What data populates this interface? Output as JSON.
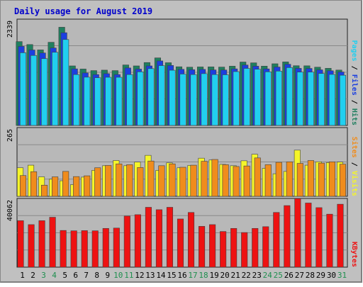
{
  "chart_data": {
    "type": "bar",
    "title": "Daily usage for August 2019",
    "categories": [
      "1",
      "2",
      "3",
      "4",
      "5",
      "6",
      "7",
      "8",
      "9",
      "10",
      "11",
      "12",
      "13",
      "14",
      "15",
      "16",
      "17",
      "18",
      "19",
      "20",
      "21",
      "22",
      "23",
      "24",
      "25",
      "26",
      "27",
      "28",
      "29",
      "30",
      "31"
    ],
    "weekend_days": [
      "3",
      "4",
      "10",
      "11",
      "17",
      "18",
      "24",
      "25",
      "31"
    ],
    "panels": [
      {
        "name": "hits-files-pages",
        "ymax_label": "2339",
        "ylim": [
          0,
          2339
        ],
        "right_labels": [
          "Pages",
          "Files",
          "Hits"
        ],
        "series": [
          {
            "name": "Hits",
            "color": "#1f7f5f",
            "values": [
              1845,
              1780,
              1662,
              1830,
              2161,
              1310,
              1241,
              1207,
              1217,
              1207,
              1331,
              1310,
              1384,
              1486,
              1380,
              1291,
              1282,
              1287,
              1288,
              1284,
              1304,
              1395,
              1377,
              1305,
              1357,
              1398,
              1314,
              1312,
              1282,
              1257,
              1219
            ]
          },
          {
            "name": "Files",
            "color": "#1b3fe0",
            "values": [
              1740,
              1660,
              1595,
              1705,
              2040,
              1245,
              1155,
              1120,
              1140,
              1120,
              1265,
              1240,
              1310,
              1420,
              1320,
              1235,
              1226,
              1233,
              1222,
              1220,
              1245,
              1329,
              1304,
              1244,
              1286,
              1346,
              1256,
              1254,
              1224,
              1203,
              1176
            ]
          },
          {
            "name": "Pages",
            "color": "#21cfef",
            "values": [
              1600,
              1540,
              1470,
              1610,
              1890,
              1120,
              1062,
              1050,
              1060,
              1060,
              1120,
              1180,
              1250,
              1317,
              1215,
              1131,
              1120,
              1140,
              1120,
              1115,
              1185,
              1255,
              1237,
              1180,
              1196,
              1273,
              1174,
              1174,
              1143,
              1123,
              1105
            ]
          }
        ]
      },
      {
        "name": "visits-sites",
        "ymax_label": "265",
        "ylim": [
          0,
          265
        ],
        "right_labels": [
          "Sites",
          "Visits"
        ],
        "series": [
          {
            "name": "Visits",
            "color": "#f5f52a",
            "values": [
              110,
              120,
              75,
              66,
              60,
              45,
              74,
              100,
              118,
              138,
              118,
              132,
              158,
              100,
              129,
              110,
              119,
              147,
              140,
              123,
              118,
              137,
              162,
              108,
              87,
              96,
              178,
              120,
              133,
              130,
              132
            ]
          },
          {
            "name": "Sites",
            "color": "#f08c1c",
            "values": [
              80,
              95,
              43,
              75,
              96,
              76,
              79,
              110,
              119,
              125,
              122,
              111,
              136,
              118,
              125,
              112,
              120,
              135,
              142,
              122,
              115,
              117,
              148,
              122,
              131,
              133,
              127,
              138,
              128,
              133,
              124
            ]
          }
        ]
      },
      {
        "name": "kbytes",
        "ymax_label": "40062",
        "ylim": [
          0,
          40062
        ],
        "right_labels": [
          "KBytes"
        ],
        "series": [
          {
            "name": "KBytes",
            "color": "#ee1212",
            "values": [
              27100,
              24800,
              27100,
              29100,
              21400,
              21200,
              21300,
              21200,
              22600,
              22800,
              29800,
              30600,
              34900,
              33500,
              34900,
              28100,
              31900,
              23800,
              24800,
              20800,
              22600,
              20200,
              22600,
              23600,
              31900,
              35900,
              40000,
              37400,
              34700,
              30900,
              36700
            ]
          }
        ]
      }
    ]
  }
}
